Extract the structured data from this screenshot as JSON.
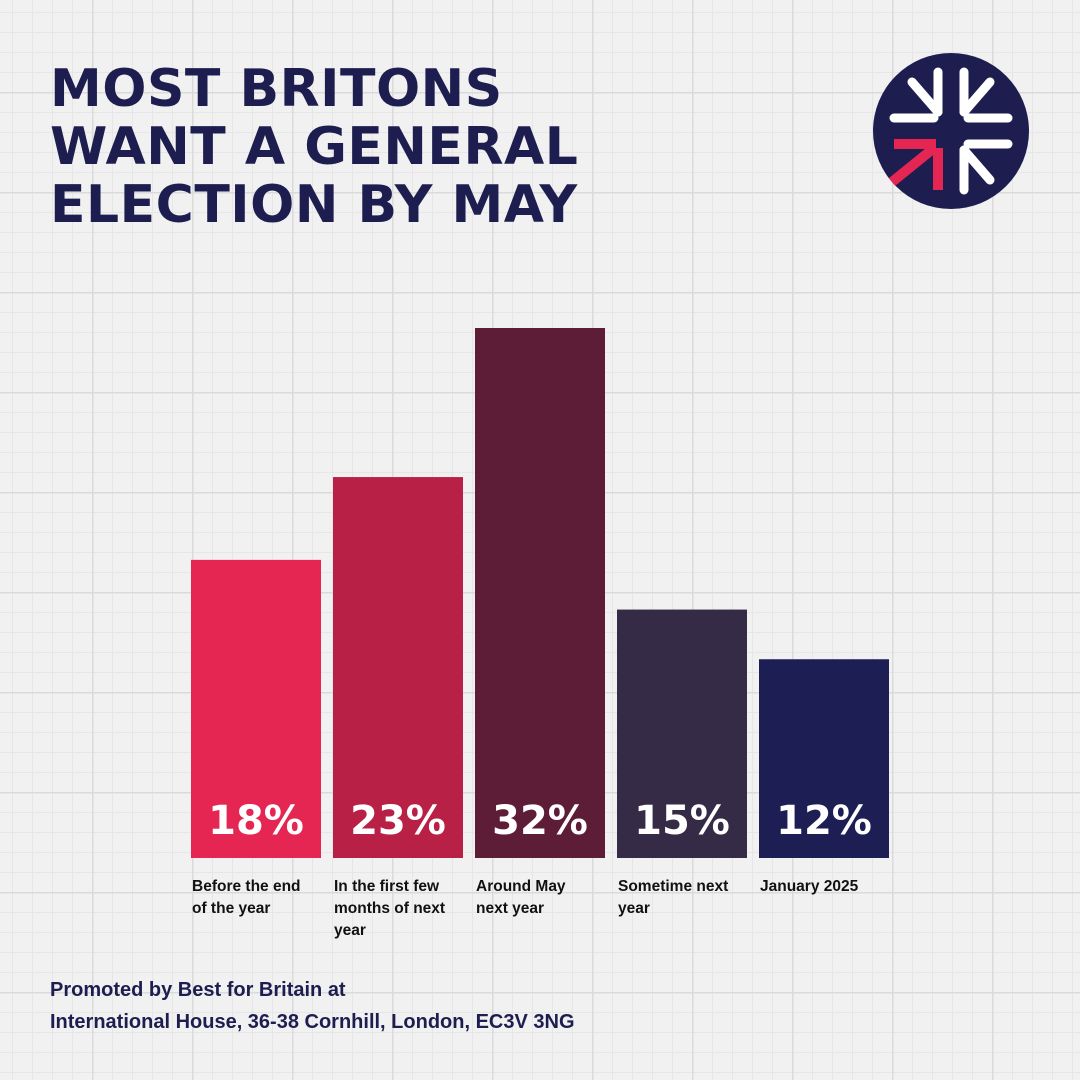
{
  "title_lines": [
    "MOST BRITONS",
    "WANT A GENERAL",
    "ELECTION BY MAY"
  ],
  "chart_data": {
    "type": "bar",
    "categories": [
      "Before the end of the year",
      "In the first few months of next year",
      "Around May next year",
      "Sometime next year",
      "January 2025"
    ],
    "category_label_lines": [
      [
        "Before the end",
        "of the year"
      ],
      [
        "In the first few",
        "months of next",
        "year"
      ],
      [
        "Around May",
        "next year"
      ],
      [
        "Sometime next",
        "year"
      ],
      [
        "January 2025"
      ]
    ],
    "values": [
      18,
      23,
      32,
      15,
      12
    ],
    "value_labels": [
      "18%",
      "23%",
      "32%",
      "15%",
      "12%"
    ],
    "bar_colors": [
      "#e52653",
      "#b82145",
      "#5e1d36",
      "#352b47",
      "#1c1e54"
    ],
    "ylim": [
      0,
      32
    ],
    "grid": false,
    "xlabel": "",
    "ylabel": ""
  },
  "footer": {
    "line1": "Promoted by Best for Britain at",
    "line2": "International House, 36-38 Cornhill, London, EC3V 3NG"
  },
  "logo": {
    "icon": "best-for-britain-arrows-logo-icon",
    "bg_color": "#1d1e4f",
    "accent_color": "#e52653"
  },
  "colors": {
    "title": "#1d1e4f",
    "background": "#f1f1f1"
  }
}
